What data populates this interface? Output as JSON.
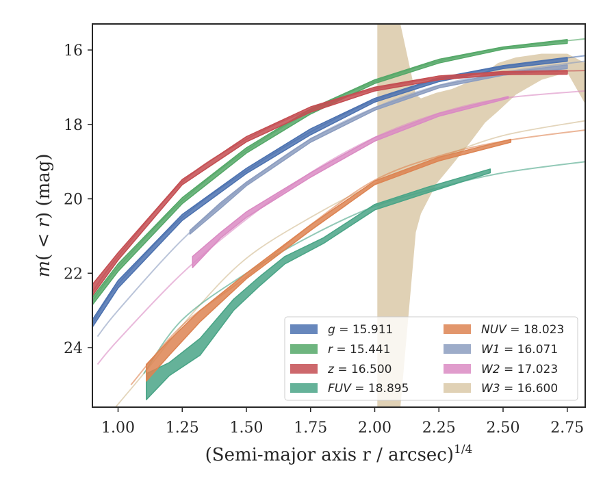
{
  "chart_data": {
    "type": "line",
    "title": "",
    "xlabel": "(Semi-major axis r / arcsec)",
    "xlabel_exponent": "1/4",
    "ylabel": "m(< r) (mag)",
    "ylabel_paren_open": "(",
    "ylabel_less": " < ",
    "ylabel_paren_close": ")",
    "ylabel_units": " (mag)",
    "xlim": [
      0.9,
      2.82
    ],
    "ylim": [
      25.6,
      15.3
    ],
    "y_inverted": true,
    "grid": false,
    "legend_location": "lower-right",
    "legend_columns": 2,
    "x_ticks": [
      {
        "value": 1.0,
        "label": "1.00"
      },
      {
        "value": 1.25,
        "label": "1.25"
      },
      {
        "value": 1.5,
        "label": "1.50"
      },
      {
        "value": 1.75,
        "label": "1.75"
      },
      {
        "value": 2.0,
        "label": "2.00"
      },
      {
        "value": 2.25,
        "label": "2.25"
      },
      {
        "value": 2.5,
        "label": "2.50"
      },
      {
        "value": 2.75,
        "label": "2.75"
      }
    ],
    "y_ticks": [
      {
        "value": 16,
        "label": "16"
      },
      {
        "value": 18,
        "label": "18"
      },
      {
        "value": 20,
        "label": "20"
      },
      {
        "value": 22,
        "label": "22"
      },
      {
        "value": 24,
        "label": "24"
      }
    ],
    "series": [
      {
        "key": "g",
        "band": "g",
        "value_label": "15.911",
        "italic": true,
        "color": "#4c72b0",
        "model_curve": {
          "x": [
            0.9,
            1.0,
            1.25,
            1.5,
            1.75,
            2.0,
            2.25,
            2.5,
            2.82
          ],
          "y": [
            23.35,
            22.3,
            20.5,
            19.25,
            18.2,
            17.35,
            16.8,
            16.45,
            16.15
          ]
        },
        "data_band": {
          "x": [
            0.9,
            1.0,
            1.25,
            1.5,
            1.75,
            2.0,
            2.25,
            2.5,
            2.75
          ],
          "y_lo": [
            23.25,
            22.2,
            20.42,
            19.18,
            18.12,
            17.3,
            16.75,
            16.42,
            16.2
          ],
          "y_hi": [
            23.45,
            22.4,
            20.58,
            19.32,
            18.28,
            17.4,
            16.85,
            16.5,
            16.3
          ]
        }
      },
      {
        "key": "r",
        "band": "r",
        "value_label": "15.441",
        "italic": true,
        "color": "#55a868",
        "model_curve": {
          "x": [
            0.9,
            1.0,
            1.25,
            1.5,
            1.75,
            2.0,
            2.25,
            2.5,
            2.82
          ],
          "y": [
            22.75,
            21.85,
            20.05,
            18.7,
            17.65,
            16.85,
            16.3,
            15.95,
            15.7
          ]
        },
        "data_band": {
          "x": [
            0.9,
            1.0,
            1.25,
            1.5,
            1.75,
            2.0,
            2.25,
            2.5,
            2.75
          ],
          "y_lo": [
            22.65,
            21.75,
            19.97,
            18.63,
            17.58,
            16.8,
            16.25,
            15.92,
            15.72
          ],
          "y_hi": [
            22.85,
            21.95,
            20.13,
            18.77,
            17.72,
            16.9,
            16.35,
            15.98,
            15.82
          ]
        }
      },
      {
        "key": "z",
        "band": "z",
        "value_label": "16.500",
        "italic": true,
        "color": "#c44e52",
        "model_curve": {
          "x": [
            0.9,
            1.0,
            1.25,
            1.5,
            1.75,
            2.0,
            2.25,
            2.5,
            2.82
          ],
          "y": [
            22.5,
            21.55,
            19.55,
            18.4,
            17.6,
            17.05,
            16.75,
            16.62,
            16.55
          ]
        },
        "data_band": {
          "x": [
            0.9,
            1.0,
            1.25,
            1.5,
            1.75,
            2.0,
            2.25,
            2.5,
            2.75
          ],
          "y_lo": [
            22.3,
            21.45,
            19.48,
            18.33,
            17.53,
            17.0,
            16.7,
            16.58,
            16.55
          ],
          "y_hi": [
            22.6,
            21.65,
            19.62,
            18.47,
            17.67,
            17.1,
            16.8,
            16.66,
            16.65
          ]
        }
      },
      {
        "key": "FUV",
        "band": "FUV",
        "value_label": "18.895",
        "italic": true,
        "color": "#4aa587",
        "model_curve": {
          "x": [
            1.1,
            1.25,
            1.5,
            1.75,
            2.0,
            2.25,
            2.5,
            2.82
          ],
          "y": [
            24.7,
            23.25,
            22.0,
            21.0,
            20.2,
            19.7,
            19.3,
            19.0
          ]
        },
        "data_band": {
          "x": [
            1.11,
            1.2,
            1.32,
            1.45,
            1.55,
            1.65,
            1.8,
            2.0,
            2.2,
            2.45
          ],
          "y_lo": [
            24.7,
            24.4,
            23.75,
            22.7,
            22.1,
            21.55,
            21.05,
            20.15,
            19.7,
            19.2
          ],
          "y_hi": [
            25.4,
            24.75,
            24.2,
            23.0,
            22.35,
            21.75,
            21.2,
            20.3,
            19.85,
            19.3
          ]
        }
      },
      {
        "key": "NUV",
        "band": "NUV",
        "value_label": "18.023",
        "italic": true,
        "color": "#dd8452",
        "model_curve": {
          "x": [
            1.05,
            1.25,
            1.5,
            1.75,
            2.0,
            2.25,
            2.5,
            2.82
          ],
          "y": [
            25.0,
            23.4,
            22.1,
            20.7,
            19.5,
            18.85,
            18.45,
            18.15
          ]
        },
        "data_band": {
          "x": [
            1.11,
            1.2,
            1.32,
            1.5,
            1.75,
            2.0,
            2.25,
            2.53
          ],
          "y_lo": [
            24.45,
            23.8,
            23.0,
            22.0,
            20.7,
            19.52,
            18.88,
            18.4
          ],
          "y_hi": [
            24.9,
            24.2,
            23.3,
            22.15,
            20.85,
            19.62,
            18.98,
            18.48
          ]
        }
      },
      {
        "key": "W1",
        "band": "W1",
        "value_label": "16.071",
        "italic": true,
        "color": "#8c9dc0",
        "model_curve": {
          "x": [
            0.92,
            1.0,
            1.25,
            1.5,
            1.75,
            2.0,
            2.25,
            2.5,
            2.82
          ],
          "y": [
            23.7,
            23.0,
            21.1,
            19.6,
            18.4,
            17.55,
            16.95,
            16.6,
            16.3
          ]
        },
        "data_band": {
          "x": [
            1.28,
            1.4,
            1.5,
            1.75,
            2.0,
            2.25,
            2.5,
            2.75
          ],
          "y_lo": [
            20.85,
            20.1,
            19.55,
            18.38,
            17.55,
            16.95,
            16.62,
            16.4
          ],
          "y_hi": [
            20.95,
            20.25,
            19.65,
            18.48,
            17.62,
            17.02,
            16.68,
            16.5
          ]
        }
      },
      {
        "key": "W2",
        "band": "W2",
        "value_label": "17.023",
        "italic": true,
        "color": "#da8bc3",
        "model_curve": {
          "x": [
            0.92,
            1.0,
            1.25,
            1.5,
            1.75,
            2.0,
            2.25,
            2.5,
            2.82
          ],
          "y": [
            24.45,
            23.8,
            22.0,
            20.55,
            19.3,
            18.35,
            17.7,
            17.3,
            17.1
          ]
        },
        "data_band": {
          "x": [
            1.29,
            1.4,
            1.5,
            1.75,
            2.0,
            2.25,
            2.52
          ],
          "y_lo": [
            21.55,
            20.9,
            20.35,
            19.3,
            18.35,
            17.7,
            17.25
          ],
          "y_hi": [
            21.85,
            21.05,
            20.5,
            19.42,
            18.45,
            17.78,
            17.3
          ]
        }
      },
      {
        "key": "W3",
        "band": "W3",
        "value_label": "16.600",
        "italic": true,
        "color": "#ccb283",
        "model_curve": {
          "x": [
            0.99,
            1.1,
            1.3,
            1.5,
            1.75,
            2.0,
            2.25,
            2.5,
            2.82
          ],
          "y": [
            25.6,
            24.7,
            23.0,
            21.6,
            20.5,
            19.6,
            18.9,
            18.3,
            17.9
          ]
        },
        "data_band": {
          "x": [
            2.01,
            2.1,
            2.16,
            2.18,
            2.24,
            2.3,
            2.37,
            2.43,
            2.48,
            2.55,
            2.65,
            2.75,
            2.82
          ],
          "y_lo": [
            15.3,
            15.3,
            17.2,
            17.3,
            17.15,
            17.05,
            16.85,
            16.6,
            16.35,
            16.2,
            16.1,
            16.1,
            16.35
          ],
          "y_hi": [
            25.6,
            25.6,
            20.9,
            20.4,
            19.6,
            19.1,
            18.5,
            17.95,
            17.65,
            17.2,
            16.8,
            16.6,
            17.45
          ]
        }
      }
    ]
  }
}
